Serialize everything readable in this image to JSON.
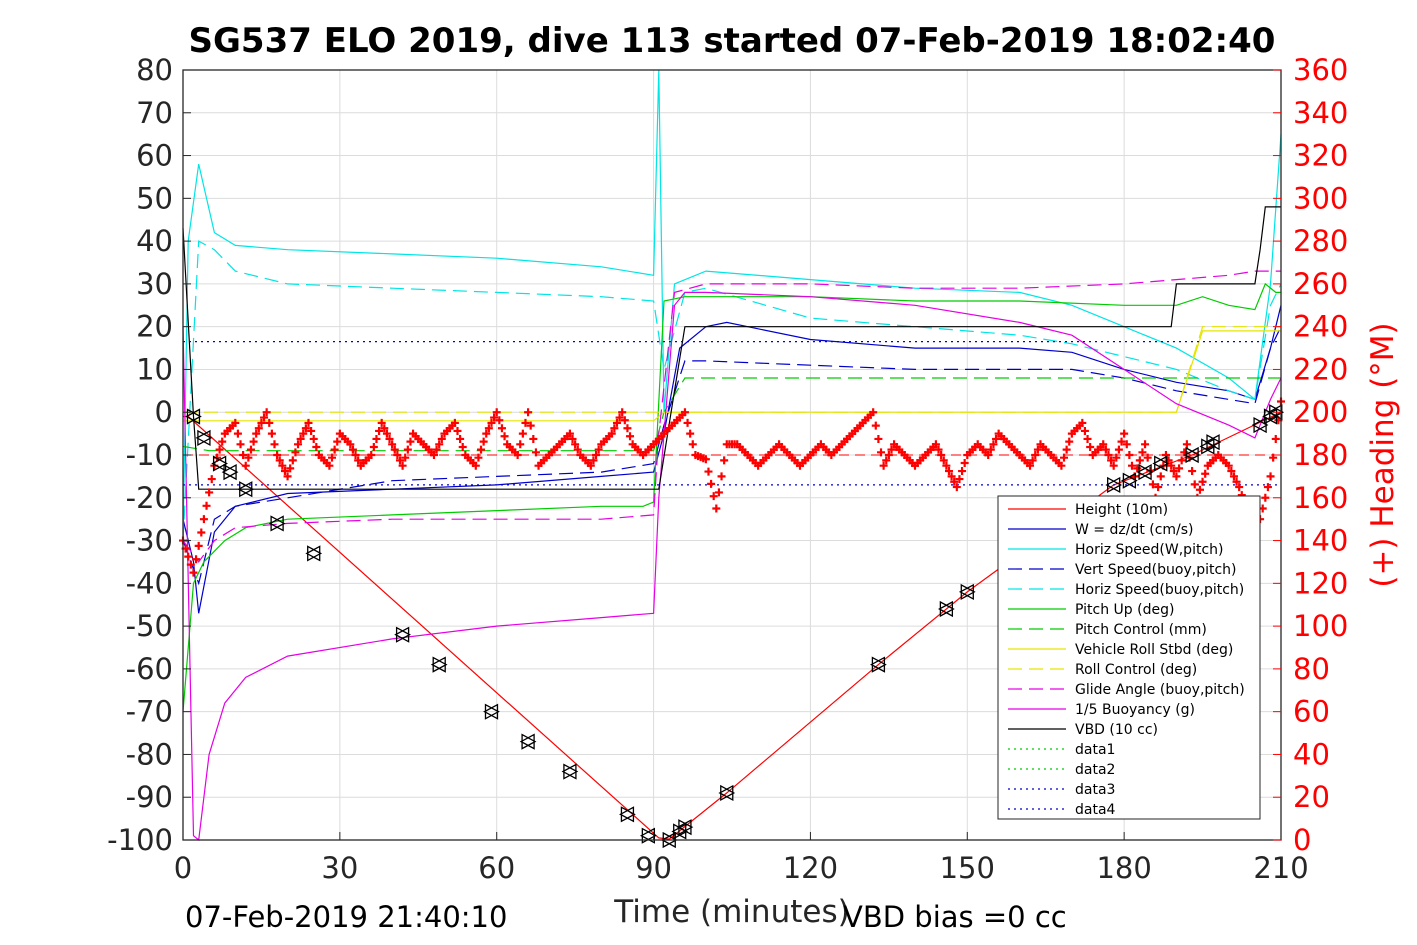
{
  "chart_data": {
    "type": "line",
    "title": "SG537 ELO 2019, dive 113 started 07-Feb-2019 18:02:40",
    "xlabel": "Time (minutes)",
    "ylabel": "",
    "ylabel_right": "(+) Heading (°M)",
    "xlim": [
      0,
      210
    ],
    "ylim": [
      -100,
      80
    ],
    "ylim_right": [
      0,
      360
    ],
    "x_ticks": [
      "0",
      "30",
      "60",
      "90",
      "120",
      "150",
      "180",
      "210"
    ],
    "y_ticks": [
      "-100",
      "-90",
      "-80",
      "-70",
      "-60",
      "-50",
      "-40",
      "-30",
      "-20",
      "-10",
      "0",
      "10",
      "20",
      "30",
      "40",
      "50",
      "60",
      "70",
      "80"
    ],
    "y_right_ticks": [
      "0",
      "20",
      "40",
      "60",
      "80",
      "100",
      "120",
      "140",
      "160",
      "180",
      "200",
      "220",
      "240",
      "260",
      "280",
      "300",
      "320",
      "340",
      "360"
    ],
    "grid": true,
    "legend_position": "bottom-right",
    "footer_left": "07-Feb-2019 21:40:10",
    "footer_right": "VBD bias =0 cc",
    "series": [
      {
        "name": "Height (10m)",
        "color": "#ff0000",
        "style": "solid",
        "x": [
          0,
          1,
          91,
          93,
          104,
          133,
          150,
          178,
          193,
          210
        ],
        "y": [
          -1,
          -1,
          -99.5,
          -99.8,
          -89,
          -59,
          -42,
          -17,
          -10,
          0
        ]
      },
      {
        "name": "W = dz/dt (cm/s)",
        "color": "#0000cc",
        "style": "solid",
        "x": [
          0,
          2,
          3,
          6,
          10,
          20,
          40,
          60,
          80,
          90,
          92,
          95,
          100,
          104,
          120,
          140,
          160,
          170,
          180,
          190,
          200,
          205,
          208,
          210
        ],
        "y": [
          -25,
          -35,
          -47,
          -28,
          -22,
          -19,
          -18,
          -17,
          -15,
          -14,
          -5,
          15,
          20,
          21,
          17,
          15,
          15,
          14,
          10,
          7,
          5,
          3,
          15,
          25
        ]
      },
      {
        "name": "Horiz Speed(W,pitch)",
        "color": "#00e5e5",
        "style": "solid",
        "x": [
          0,
          1,
          3,
          6,
          10,
          20,
          40,
          60,
          80,
          90,
          91,
          92,
          94,
          100,
          120,
          140,
          160,
          170,
          180,
          190,
          200,
          205,
          208,
          210
        ],
        "y": [
          -30,
          40,
          58,
          42,
          39,
          38,
          37,
          36,
          34,
          32,
          80,
          0,
          30,
          33,
          31,
          29,
          28,
          25,
          20,
          15,
          8,
          3,
          30,
          65
        ]
      },
      {
        "name": "Vert Speed(buoy,pitch)",
        "color": "#0000cc",
        "style": "dashed",
        "x": [
          0,
          3,
          6,
          10,
          20,
          40,
          60,
          80,
          90,
          92,
          96,
          100,
          120,
          140,
          160,
          170,
          180,
          190,
          200,
          205,
          208,
          210
        ],
        "y": [
          -30,
          -40,
          -25,
          -22,
          -20,
          -16,
          -15,
          -14,
          -12,
          -3,
          12,
          12,
          11,
          10,
          10,
          10,
          8,
          5,
          3,
          2,
          15,
          20
        ]
      },
      {
        "name": "Horiz Speed(buoy,pitch)",
        "color": "#00e5e5",
        "style": "dashed",
        "x": [
          0,
          3,
          6,
          10,
          20,
          30,
          40,
          60,
          80,
          90,
          92,
          96,
          100,
          120,
          140,
          160,
          170,
          180,
          190,
          200,
          205,
          208,
          210
        ],
        "y": [
          -30,
          40,
          38,
          33,
          30,
          29.5,
          29,
          28,
          27,
          26,
          10,
          28,
          29,
          22,
          20,
          18,
          16,
          13,
          10,
          5,
          3,
          25,
          30
        ]
      },
      {
        "name": "Pitch Up (deg)",
        "color": "#00cc00",
        "style": "solid",
        "x": [
          0,
          2,
          4,
          8,
          12,
          20,
          40,
          60,
          80,
          88,
          90,
          92,
          96,
          100,
          120,
          140,
          160,
          180,
          190,
          195,
          200,
          205,
          207,
          209,
          210
        ],
        "y": [
          -70,
          -40,
          -35,
          -30,
          -27,
          -25,
          -24,
          -23,
          -22,
          -22,
          -21,
          26,
          27,
          27,
          27,
          26,
          26,
          25,
          25,
          27,
          25,
          24,
          30,
          28,
          28
        ]
      },
      {
        "name": "Pitch Control (mm)",
        "color": "#00cc00",
        "style": "dashed",
        "x": [
          0,
          5,
          10,
          20,
          40,
          60,
          80,
          90,
          92,
          96,
          110,
          130,
          150,
          170,
          180,
          195,
          205,
          210
        ],
        "y": [
          -8,
          -9,
          -9,
          -9,
          -9,
          -9,
          -9,
          -9,
          0,
          8,
          8,
          8,
          8,
          8,
          8,
          8,
          8,
          8
        ]
      },
      {
        "name": "Vehicle Roll Stbd (deg)",
        "color": "#e5e500",
        "style": "solid",
        "x": [
          0,
          5,
          10,
          20,
          40,
          60,
          80,
          90,
          92,
          96,
          104,
          120,
          140,
          160,
          180,
          190,
          195,
          200,
          205,
          210
        ],
        "y": [
          -2,
          -2,
          -2,
          -2,
          -2,
          -2,
          -2,
          -2,
          0,
          0,
          0,
          0,
          0,
          0,
          0,
          0,
          19,
          19,
          19,
          19
        ]
      },
      {
        "name": "Roll Control (deg)",
        "color": "#e5e500",
        "style": "dashed",
        "x": [
          0,
          5,
          10,
          20,
          40,
          60,
          80,
          90,
          92,
          96,
          104,
          120,
          140,
          160,
          180,
          190,
          195,
          200,
          205,
          210
        ],
        "y": [
          0,
          0,
          0,
          0,
          0,
          0,
          0,
          0,
          0,
          0,
          0,
          0,
          0,
          0,
          0,
          0,
          20,
          20,
          20,
          20
        ]
      },
      {
        "name": "Glide Angle (buoy,pitch)",
        "color": "#e500e5",
        "style": "dashed",
        "x": [
          0,
          3,
          6,
          10,
          20,
          40,
          60,
          80,
          90,
          91,
          94,
          100,
          120,
          140,
          160,
          180,
          190,
          200,
          205,
          208,
          210
        ],
        "y": [
          -30,
          -35,
          -30,
          -27,
          -26,
          -25,
          -25,
          -25,
          -24,
          -5,
          28,
          30,
          30,
          29,
          29,
          30,
          31,
          32,
          33,
          33,
          33
        ]
      },
      {
        "name": "1/5 Buoyancy (g)",
        "color": "#e500e5",
        "style": "solid",
        "x": [
          0,
          2,
          3,
          5,
          8,
          12,
          20,
          40,
          60,
          80,
          90,
          91,
          94,
          96,
          100,
          120,
          140,
          160,
          170,
          180,
          190,
          200,
          205,
          208,
          210
        ],
        "y": [
          20,
          -99,
          -100,
          -80,
          -68,
          -62,
          -57,
          -53,
          -50,
          -48,
          -47,
          -20,
          25,
          28,
          28,
          27,
          25,
          21,
          18,
          10,
          2,
          -3,
          -6,
          3,
          8
        ]
      },
      {
        "name": "VBD (10 cc)",
        "color": "#000000",
        "style": "solid",
        "x": [
          0,
          2,
          3,
          90,
          91,
          94,
          96,
          104,
          150,
          180,
          189,
          190,
          205,
          206,
          207,
          210
        ],
        "y": [
          43,
          -1,
          -18,
          -18,
          -18,
          5,
          20,
          20,
          20,
          20,
          20,
          30,
          30,
          38,
          48,
          48
        ]
      },
      {
        "name": "data1",
        "color": "#00cc00",
        "style": "dotted",
        "x": [],
        "y": []
      },
      {
        "name": "data2",
        "color": "#00cc00",
        "style": "dotted",
        "x": [],
        "y": []
      },
      {
        "name": "data3",
        "color": "#0000cc",
        "style": "dotted",
        "x": [
          0,
          210
        ],
        "y": [
          16.5,
          16.5
        ]
      },
      {
        "name": "data4",
        "color": "#0000cc",
        "style": "dotted",
        "x": [
          0,
          210
        ],
        "y": [
          -17,
          -17
        ]
      }
    ],
    "red_dashed_line": {
      "color": "#ff0000",
      "y": -10
    },
    "heading": {
      "axis": "right",
      "color": "#ff0000",
      "marker": "+",
      "x": [
        0,
        2,
        4,
        6,
        8,
        10,
        12,
        14,
        16,
        18,
        20,
        22,
        24,
        26,
        28,
        30,
        32,
        34,
        36,
        38,
        40,
        42,
        44,
        46,
        48,
        50,
        52,
        54,
        56,
        58,
        60,
        62,
        64,
        66,
        68,
        70,
        72,
        74,
        76,
        78,
        80,
        82,
        84,
        86,
        88,
        90,
        92,
        94,
        96,
        98,
        100,
        102,
        104,
        106,
        108,
        110,
        112,
        114,
        116,
        118,
        120,
        122,
        124,
        126,
        128,
        130,
        132,
        134,
        136,
        138,
        140,
        142,
        144,
        146,
        148,
        150,
        152,
        154,
        156,
        158,
        160,
        162,
        164,
        166,
        168,
        170,
        172,
        174,
        176,
        178,
        180,
        182,
        184,
        186,
        188,
        190,
        192,
        194,
        196,
        198,
        200,
        202,
        204,
        206,
        208,
        210
      ],
      "y": [
        140,
        125,
        150,
        175,
        190,
        195,
        175,
        190,
        200,
        180,
        170,
        185,
        195,
        180,
        175,
        190,
        185,
        175,
        180,
        195,
        185,
        175,
        190,
        185,
        180,
        190,
        195,
        180,
        175,
        190,
        200,
        185,
        180,
        200,
        175,
        180,
        185,
        190,
        180,
        175,
        185,
        190,
        200,
        185,
        180,
        185,
        190,
        195,
        200,
        180,
        178,
        155,
        185,
        185,
        180,
        175,
        180,
        185,
        180,
        175,
        180,
        185,
        180,
        185,
        190,
        195,
        200,
        175,
        185,
        180,
        175,
        180,
        185,
        175,
        165,
        180,
        185,
        180,
        190,
        185,
        180,
        175,
        185,
        180,
        175,
        190,
        195,
        180,
        185,
        175,
        190,
        170,
        185,
        160,
        180,
        170,
        185,
        160,
        175,
        180,
        175,
        165,
        150,
        150,
        170,
        205
      ]
    },
    "samples": {
      "marker": "triangles",
      "x": [
        2,
        4,
        7,
        9,
        12,
        18,
        25,
        42,
        49,
        59,
        66,
        74,
        85,
        89,
        93,
        95,
        96,
        104,
        133,
        146,
        150,
        178,
        181,
        184,
        187,
        193,
        196,
        197,
        206,
        208,
        209
      ],
      "y": [
        -1,
        -6,
        -12,
        -14,
        -18,
        -26,
        -33,
        -52,
        -59,
        -70,
        -77,
        -84,
        -94,
        -99,
        -100,
        -98,
        -97,
        -89,
        -59,
        -46,
        -42,
        -17,
        -16,
        -14,
        -12,
        -10,
        -8,
        -7,
        -3,
        -1,
        0
      ]
    }
  }
}
